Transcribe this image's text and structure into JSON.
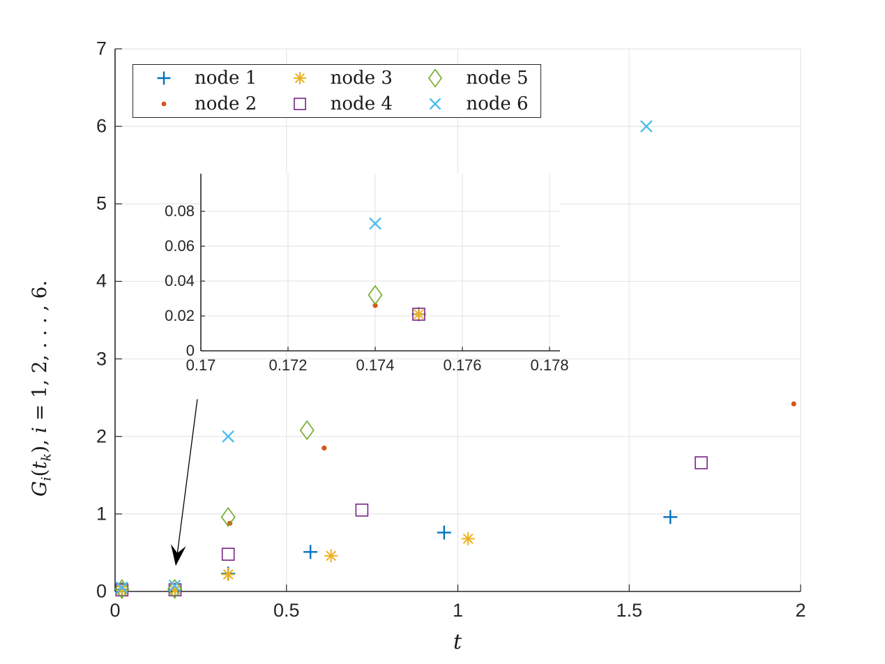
{
  "figure": {
    "background": "#ffffff",
    "axis_color": "#262626",
    "grid_color": "#e6e6e6",
    "arrow_color": "#000000"
  },
  "labels": {
    "xlabel": "t",
    "ylabel_parts": {
      "p1": "G",
      "p2": "i",
      "p3": "(",
      "p4": "t",
      "p5": "k",
      "p6": "), ",
      "p7": "i",
      "p8": " = 1, 2, . . . , 6."
    }
  },
  "legend": {
    "position": "top-left-inside",
    "columns": 3,
    "items": [
      {
        "label": "node 1",
        "marker": "plus",
        "color": "#0072BD"
      },
      {
        "label": "node 2",
        "marker": "dot",
        "color": "#D95319"
      },
      {
        "label": "node 3",
        "marker": "asterisk",
        "color": "#EDB120"
      },
      {
        "label": "node 4",
        "marker": "square",
        "color": "#7E2F8E"
      },
      {
        "label": "node 5",
        "marker": "diamond",
        "color": "#77AC30"
      },
      {
        "label": "node 6",
        "marker": "x",
        "color": "#4DBEEE"
      }
    ]
  },
  "chart_data": [
    {
      "id": "main",
      "type": "scatter",
      "title": "",
      "xlabel": "t",
      "ylabel": "G_i(t_k), i = 1, 2, ..., 6.",
      "xlim": [
        0,
        2
      ],
      "ylim": [
        0,
        7
      ],
      "grid": true,
      "xticks": {
        "values": [
          0,
          0.5,
          1,
          1.5,
          2
        ],
        "labels": [
          "0",
          "0.5",
          "1",
          "1.5",
          "2"
        ]
      },
      "yticks": {
        "values": [
          0,
          1,
          2,
          3,
          4,
          5,
          6,
          7
        ],
        "labels": [
          "0",
          "1",
          "2",
          "3",
          "4",
          "5",
          "6",
          "7"
        ]
      },
      "series": [
        {
          "name": "node 1",
          "marker": "plus",
          "color": "#0072BD",
          "points": [
            [
              0.02,
              0.025
            ],
            [
              0.175,
              0.021
            ],
            [
              0.33,
              0.23
            ],
            [
              0.57,
              0.51
            ],
            [
              0.96,
              0.76
            ],
            [
              1.62,
              0.96
            ]
          ]
        },
        {
          "name": "node 2",
          "marker": "dot",
          "color": "#D95319",
          "points": [
            [
              0.02,
              0.03
            ],
            [
              0.174,
              0.026
            ],
            [
              0.335,
              0.88
            ],
            [
              0.61,
              1.85
            ],
            [
              1.98,
              2.42
            ]
          ]
        },
        {
          "name": "node 3",
          "marker": "asterisk",
          "color": "#EDB120",
          "points": [
            [
              0.02,
              0.02
            ],
            [
              0.175,
              0.021
            ],
            [
              0.33,
              0.22
            ],
            [
              0.63,
              0.46
            ],
            [
              1.03,
              0.68
            ]
          ]
        },
        {
          "name": "node 4",
          "marker": "square",
          "color": "#7E2F8E",
          "points": [
            [
              0.02,
              0.02
            ],
            [
              0.175,
              0.021
            ],
            [
              0.33,
              0.48
            ],
            [
              0.72,
              1.05
            ],
            [
              1.71,
              1.66
            ]
          ]
        },
        {
          "name": "node 5",
          "marker": "diamond",
          "color": "#77AC30",
          "points": [
            [
              0.02,
              0.03
            ],
            [
              0.174,
              0.032
            ],
            [
              0.33,
              0.96
            ],
            [
              0.56,
              2.08
            ]
          ]
        },
        {
          "name": "node 6",
          "marker": "x",
          "color": "#4DBEEE",
          "points": [
            [
              0.02,
              0.05
            ],
            [
              0.174,
              0.073
            ],
            [
              0.33,
              2.0
            ],
            [
              1.55,
              6.0
            ]
          ]
        }
      ],
      "annotation_arrow": {
        "from": [
          0.24,
          2.48
        ],
        "to": [
          0.177,
          0.33
        ]
      }
    },
    {
      "id": "inset",
      "type": "scatter",
      "title": "",
      "xlabel": "",
      "ylabel": "",
      "xlim": [
        0.17,
        0.17824
      ],
      "ylim": [
        0,
        0.1016
      ],
      "grid": true,
      "xticks": {
        "values": [
          0.17,
          0.172,
          0.174,
          0.176,
          0.178
        ],
        "labels": [
          "0.17",
          "0.172",
          "0.174",
          "0.176",
          "0.178"
        ]
      },
      "yticks": {
        "values": [
          0,
          0.02,
          0.04,
          0.06,
          0.08
        ],
        "labels": [
          "0",
          "0.02",
          "0.04",
          "0.06",
          "0.08"
        ]
      },
      "series": [
        {
          "name": "node 1",
          "marker": "plus",
          "color": "#0072BD",
          "points": [
            [
              0.175,
              0.021
            ]
          ]
        },
        {
          "name": "node 2",
          "marker": "dot",
          "color": "#D95319",
          "points": [
            [
              0.174,
              0.026
            ]
          ]
        },
        {
          "name": "node 3",
          "marker": "asterisk",
          "color": "#EDB120",
          "points": [
            [
              0.175,
              0.021
            ]
          ]
        },
        {
          "name": "node 4",
          "marker": "square",
          "color": "#7E2F8E",
          "points": [
            [
              0.175,
              0.021
            ]
          ]
        },
        {
          "name": "node 5",
          "marker": "diamond",
          "color": "#77AC30",
          "points": [
            [
              0.174,
              0.032
            ]
          ]
        },
        {
          "name": "node 6",
          "marker": "x",
          "color": "#4DBEEE",
          "points": [
            [
              0.174,
              0.073
            ]
          ]
        }
      ]
    }
  ]
}
